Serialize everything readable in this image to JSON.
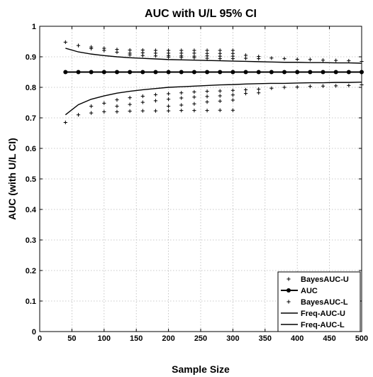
{
  "chart_data": {
    "type": "scatter",
    "title": "AUC with U/L 95% CI",
    "xlabel": "Sample Size",
    "ylabel": "AUC (with U/L CI)",
    "xlim": [
      0,
      500
    ],
    "ylim": [
      0,
      1
    ],
    "xticks": [
      0,
      50,
      100,
      150,
      200,
      250,
      300,
      350,
      400,
      450,
      500
    ],
    "yticks": [
      0,
      0.1,
      0.2,
      0.3,
      0.4,
      0.5,
      0.6,
      0.7,
      0.8,
      0.9,
      1
    ],
    "ytick_labels": [
      "0",
      "0.1",
      "0.2",
      "0.3",
      "0.4",
      "0.5",
      "0.6",
      "0.7",
      "0.8",
      "0.9",
      "1"
    ],
    "grid": true,
    "legend_position": "bottom-right",
    "series": [
      {
        "name": "BayesAUC-U",
        "style": "plus-marker",
        "x": [
          40,
          60,
          80,
          80,
          100,
          100,
          120,
          120,
          140,
          140,
          140,
          160,
          160,
          160,
          180,
          180,
          180,
          200,
          200,
          200,
          200,
          220,
          220,
          220,
          220,
          240,
          240,
          240,
          240,
          260,
          260,
          260,
          260,
          280,
          280,
          280,
          280,
          300,
          300,
          300,
          300,
          320,
          320,
          340,
          340,
          360,
          380,
          400,
          420,
          440,
          460,
          480,
          500
        ],
        "y": [
          0.948,
          0.937,
          0.932,
          0.927,
          0.928,
          0.921,
          0.924,
          0.915,
          0.922,
          0.912,
          0.906,
          0.922,
          0.913,
          0.904,
          0.921,
          0.912,
          0.903,
          0.921,
          0.912,
          0.904,
          0.899,
          0.921,
          0.912,
          0.903,
          0.898,
          0.921,
          0.912,
          0.902,
          0.897,
          0.921,
          0.911,
          0.903,
          0.895,
          0.921,
          0.911,
          0.902,
          0.894,
          0.921,
          0.911,
          0.902,
          0.894,
          0.905,
          0.895,
          0.901,
          0.894,
          0.896,
          0.894,
          0.892,
          0.891,
          0.889,
          0.888,
          0.887,
          0.885
        ]
      },
      {
        "name": "AUC",
        "style": "line-with-dots",
        "x": [
          40,
          60,
          80,
          100,
          120,
          140,
          160,
          180,
          200,
          220,
          240,
          260,
          280,
          300,
          320,
          340,
          360,
          380,
          400,
          420,
          440,
          460,
          480,
          500
        ],
        "y": [
          0.85,
          0.85,
          0.85,
          0.85,
          0.85,
          0.85,
          0.85,
          0.85,
          0.85,
          0.85,
          0.85,
          0.85,
          0.85,
          0.85,
          0.85,
          0.85,
          0.85,
          0.85,
          0.85,
          0.85,
          0.85,
          0.85,
          0.85,
          0.85
        ]
      },
      {
        "name": "BayesAUC-L",
        "style": "plus-marker",
        "x": [
          40,
          60,
          80,
          80,
          100,
          100,
          120,
          120,
          120,
          140,
          140,
          140,
          160,
          160,
          160,
          180,
          180,
          180,
          200,
          200,
          200,
          200,
          220,
          220,
          220,
          220,
          240,
          240,
          240,
          240,
          260,
          260,
          260,
          260,
          280,
          280,
          280,
          280,
          300,
          300,
          300,
          300,
          320,
          320,
          340,
          340,
          360,
          380,
          400,
          420,
          440,
          460,
          480,
          500
        ],
        "y": [
          0.685,
          0.71,
          0.738,
          0.716,
          0.748,
          0.72,
          0.759,
          0.738,
          0.72,
          0.766,
          0.744,
          0.722,
          0.771,
          0.751,
          0.723,
          0.776,
          0.756,
          0.723,
          0.779,
          0.761,
          0.738,
          0.723,
          0.782,
          0.765,
          0.742,
          0.724,
          0.785,
          0.768,
          0.746,
          0.724,
          0.787,
          0.77,
          0.752,
          0.724,
          0.788,
          0.772,
          0.755,
          0.725,
          0.79,
          0.775,
          0.758,
          0.725,
          0.792,
          0.78,
          0.794,
          0.782,
          0.797,
          0.8,
          0.801,
          0.803,
          0.804,
          0.805,
          0.806,
          0.808
        ]
      },
      {
        "name": "Freq-AUC-U",
        "style": "line",
        "x": [
          40,
          60,
          80,
          100,
          120,
          140,
          160,
          180,
          200,
          220,
          240,
          260,
          280,
          300,
          320,
          340,
          360,
          380,
          400,
          420,
          440,
          460,
          480,
          500
        ],
        "y": [
          0.928,
          0.916,
          0.909,
          0.904,
          0.9,
          0.897,
          0.895,
          0.893,
          0.891,
          0.89,
          0.889,
          0.888,
          0.887,
          0.886,
          0.885,
          0.884,
          0.883,
          0.882,
          0.882,
          0.881,
          0.881,
          0.88,
          0.88,
          0.879
        ]
      },
      {
        "name": "Freq-AUC-L",
        "style": "line",
        "x": [
          40,
          60,
          80,
          100,
          120,
          140,
          160,
          180,
          200,
          220,
          240,
          260,
          280,
          300,
          320,
          340,
          360,
          380,
          400,
          420,
          440,
          460,
          480,
          500
        ],
        "y": [
          0.71,
          0.743,
          0.761,
          0.772,
          0.781,
          0.787,
          0.792,
          0.796,
          0.8,
          0.802,
          0.804,
          0.806,
          0.808,
          0.809,
          0.811,
          0.812,
          0.813,
          0.813,
          0.814,
          0.815,
          0.815,
          0.816,
          0.816,
          0.817
        ]
      }
    ]
  }
}
